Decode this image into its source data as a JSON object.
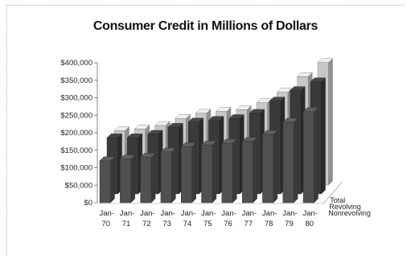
{
  "chart_data": {
    "type": "bar",
    "title": "Consumer Credit in Millions of Dollars",
    "xlabel": "",
    "ylabel": "",
    "ylim": [
      0,
      400000
    ],
    "yticks": [
      "$0",
      "$50,000",
      "$100,000",
      "$150,000",
      "$200,000",
      "$250,000",
      "$300,000",
      "$350,000",
      "$400,000"
    ],
    "categories": [
      "Jan-70",
      "Jan-71",
      "Jan-72",
      "Jan-73",
      "Jan-74",
      "Jan-75",
      "Jan-76",
      "Jan-77",
      "Jan-78",
      "Jan-79",
      "Jan-80"
    ],
    "category_label_lines": [
      [
        "Jan-",
        "70"
      ],
      [
        "Jan-",
        "71"
      ],
      [
        "Jan-",
        "72"
      ],
      [
        "Jan-",
        "73"
      ],
      [
        "Jan-",
        "74"
      ],
      [
        "Jan-",
        "75"
      ],
      [
        "Jan-",
        "76"
      ],
      [
        "Jan-",
        "77"
      ],
      [
        "Jan-",
        "78"
      ],
      [
        "Jan-",
        "79"
      ],
      [
        "Jan-",
        "80"
      ]
    ],
    "series": [
      {
        "name": "Nonrevolving",
        "color": "#505050",
        "values": [
          120000,
          125000,
          130000,
          145000,
          160000,
          165000,
          170000,
          175000,
          195000,
          230000,
          260000
        ]
      },
      {
        "name": "Revolving",
        "color": "#3a3a3a",
        "values": [
          160000,
          160000,
          170000,
          190000,
          205000,
          210000,
          215000,
          230000,
          265000,
          295000,
          320000
        ]
      },
      {
        "name": "Total",
        "color": "#c8c8c8",
        "values": [
          155000,
          160000,
          170000,
          190000,
          205000,
          210000,
          215000,
          235000,
          265000,
          310000,
          350000
        ]
      }
    ],
    "grid": false,
    "legend_position": "right-bottom"
  }
}
